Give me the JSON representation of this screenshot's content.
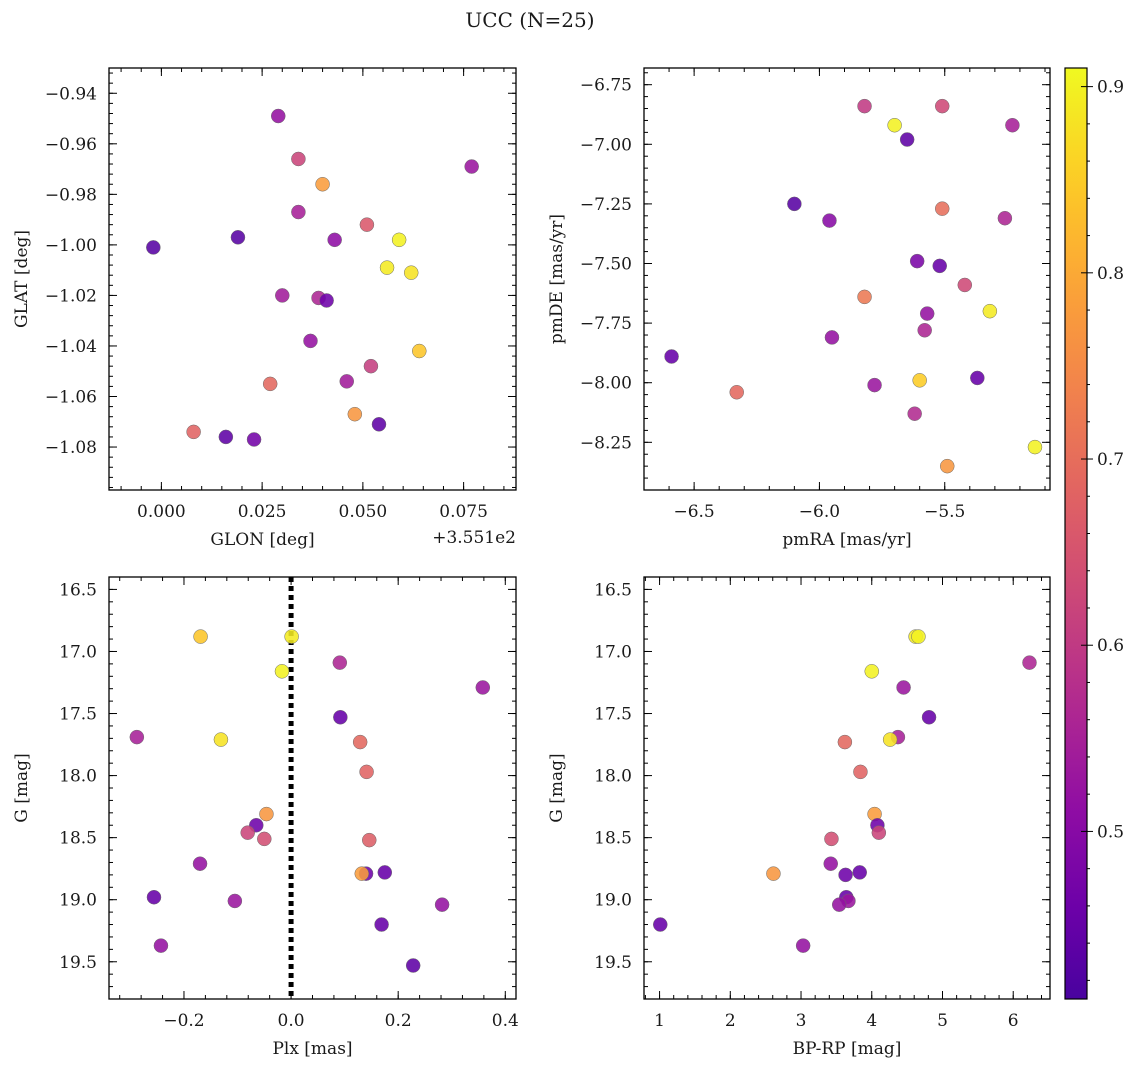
{
  "figure": {
    "title": "UCC (N=25)",
    "colorbar": {
      "colormap": "plasma",
      "range": [
        0.41,
        0.91
      ],
      "ticks": [
        "0.5",
        "0.6",
        "0.7",
        "0.8",
        "0.9"
      ],
      "tick_values": [
        0.5,
        0.6,
        0.7,
        0.8,
        0.9
      ]
    }
  },
  "chart_data": [
    {
      "type": "scatter",
      "id": "glon-glat",
      "xlabel": "GLON [deg]",
      "ylabel": "GLAT [deg]",
      "offset_label": "+3.551e2",
      "xlim": [
        -0.013,
        0.088
      ],
      "ylim": [
        -1.097,
        -0.93
      ],
      "y_inverted": false,
      "xticks": [
        0.0,
        0.025,
        0.05,
        0.075
      ],
      "xtick_labels": [
        "0.000",
        "0.025",
        "0.050",
        "0.075"
      ],
      "yticks": [
        -1.08,
        -1.06,
        -1.04,
        -1.02,
        -1.0,
        -0.98,
        -0.96,
        -0.94
      ],
      "ytick_labels": [
        "−1.08",
        "−1.06",
        "−1.04",
        "−1.02",
        "−1.00",
        "−0.98",
        "−0.96",
        "−0.94"
      ],
      "points": [
        {
          "x": 0.029,
          "y": -0.949,
          "c": 0.52
        },
        {
          "x": 0.077,
          "y": -0.969,
          "c": 0.53
        },
        {
          "x": 0.034,
          "y": -0.966,
          "c": 0.62
        },
        {
          "x": 0.04,
          "y": -0.976,
          "c": 0.78
        },
        {
          "x": 0.034,
          "y": -0.987,
          "c": 0.55
        },
        {
          "x": 0.051,
          "y": -0.992,
          "c": 0.66
        },
        {
          "x": 0.019,
          "y": -0.997,
          "c": 0.43
        },
        {
          "x": 0.043,
          "y": -0.998,
          "c": 0.51
        },
        {
          "x": 0.059,
          "y": -0.998,
          "c": 0.9
        },
        {
          "x": -0.002,
          "y": -1.001,
          "c": 0.43
        },
        {
          "x": 0.056,
          "y": -1.009,
          "c": 0.89
        },
        {
          "x": 0.062,
          "y": -1.011,
          "c": 0.88
        },
        {
          "x": 0.03,
          "y": -1.02,
          "c": 0.54
        },
        {
          "x": 0.039,
          "y": -1.021,
          "c": 0.56
        },
        {
          "x": 0.041,
          "y": -1.022,
          "c": 0.46
        },
        {
          "x": 0.037,
          "y": -1.038,
          "c": 0.52
        },
        {
          "x": 0.064,
          "y": -1.042,
          "c": 0.84
        },
        {
          "x": 0.052,
          "y": -1.048,
          "c": 0.61
        },
        {
          "x": 0.046,
          "y": -1.054,
          "c": 0.54
        },
        {
          "x": 0.027,
          "y": -1.055,
          "c": 0.69
        },
        {
          "x": 0.048,
          "y": -1.067,
          "c": 0.77
        },
        {
          "x": 0.054,
          "y": -1.071,
          "c": 0.44
        },
        {
          "x": 0.008,
          "y": -1.074,
          "c": 0.68
        },
        {
          "x": 0.016,
          "y": -1.076,
          "c": 0.44
        },
        {
          "x": 0.023,
          "y": -1.077,
          "c": 0.47
        }
      ]
    },
    {
      "type": "scatter",
      "id": "pmra-pmde",
      "xlabel": "pmRA [mas/yr]",
      "ylabel": "pmDE [mas/yr]",
      "xlim": [
        -6.7,
        -5.08
      ],
      "ylim": [
        -8.45,
        -6.68
      ],
      "y_inverted": false,
      "xticks": [
        -6.5,
        -6.0,
        -5.5
      ],
      "xtick_labels": [
        "−6.5",
        "−6.0",
        "−5.5"
      ],
      "yticks": [
        -8.25,
        -8.0,
        -7.75,
        -7.5,
        -7.25,
        -7.0,
        -6.75
      ],
      "ytick_labels": [
        "−8.25",
        "−8.00",
        "−7.75",
        "−7.50",
        "−7.25",
        "−7.00",
        "−6.75"
      ],
      "points": [
        {
          "x": -5.82,
          "y": -6.84,
          "c": 0.6
        },
        {
          "x": -5.51,
          "y": -6.84,
          "c": 0.63
        },
        {
          "x": -5.7,
          "y": -6.92,
          "c": 0.9
        },
        {
          "x": -5.23,
          "y": -6.92,
          "c": 0.55
        },
        {
          "x": -5.65,
          "y": -6.98,
          "c": 0.44
        },
        {
          "x": -6.1,
          "y": -7.25,
          "c": 0.43
        },
        {
          "x": -5.51,
          "y": -7.27,
          "c": 0.7
        },
        {
          "x": -5.26,
          "y": -7.31,
          "c": 0.56
        },
        {
          "x": -5.96,
          "y": -7.32,
          "c": 0.5
        },
        {
          "x": -5.61,
          "y": -7.49,
          "c": 0.48
        },
        {
          "x": -5.52,
          "y": -7.51,
          "c": 0.45
        },
        {
          "x": -5.42,
          "y": -7.59,
          "c": 0.63
        },
        {
          "x": -5.82,
          "y": -7.64,
          "c": 0.72
        },
        {
          "x": -5.32,
          "y": -7.7,
          "c": 0.89
        },
        {
          "x": -5.57,
          "y": -7.71,
          "c": 0.52
        },
        {
          "x": -5.58,
          "y": -7.78,
          "c": 0.56
        },
        {
          "x": -5.95,
          "y": -7.81,
          "c": 0.52
        },
        {
          "x": -6.59,
          "y": -7.89,
          "c": 0.45
        },
        {
          "x": -5.37,
          "y": -7.98,
          "c": 0.45
        },
        {
          "x": -5.6,
          "y": -7.99,
          "c": 0.85
        },
        {
          "x": -5.78,
          "y": -8.01,
          "c": 0.53
        },
        {
          "x": -6.33,
          "y": -8.04,
          "c": 0.69
        },
        {
          "x": -5.62,
          "y": -8.13,
          "c": 0.57
        },
        {
          "x": -5.14,
          "y": -8.27,
          "c": 0.9
        },
        {
          "x": -5.49,
          "y": -8.35,
          "c": 0.77
        }
      ]
    },
    {
      "type": "scatter",
      "id": "plx-g",
      "xlabel": "Plx [mas]",
      "ylabel": "G [mag]",
      "xlim": [
        -0.34,
        0.42
      ],
      "ylim": [
        16.4,
        19.8
      ],
      "y_inverted": true,
      "vline": {
        "x": 0.0,
        "style": "dotted",
        "color": "#000000"
      },
      "xticks": [
        -0.2,
        0.0,
        0.2,
        0.4
      ],
      "xtick_labels": [
        "−0.2",
        "0.0",
        "0.2",
        "0.4"
      ],
      "yticks": [
        16.5,
        17.0,
        17.5,
        18.0,
        18.5,
        19.0,
        19.5
      ],
      "ytick_labels": [
        "16.5",
        "17.0",
        "17.5",
        "18.0",
        "18.5",
        "19.0",
        "19.5"
      ],
      "points": [
        {
          "x": -0.169,
          "y": 16.88,
          "c": 0.84
        },
        {
          "x": 0.001,
          "y": 16.88,
          "c": 0.89
        },
        {
          "x": 0.091,
          "y": 17.09,
          "c": 0.56
        },
        {
          "x": -0.017,
          "y": 17.16,
          "c": 0.9
        },
        {
          "x": 0.358,
          "y": 17.29,
          "c": 0.53
        },
        {
          "x": 0.092,
          "y": 17.53,
          "c": 0.45
        },
        {
          "x": -0.288,
          "y": 17.69,
          "c": 0.55
        },
        {
          "x": -0.131,
          "y": 17.71,
          "c": 0.88
        },
        {
          "x": 0.129,
          "y": 17.73,
          "c": 0.69
        },
        {
          "x": 0.141,
          "y": 17.97,
          "c": 0.68
        },
        {
          "x": -0.046,
          "y": 18.31,
          "c": 0.77
        },
        {
          "x": -0.065,
          "y": 18.4,
          "c": 0.46
        },
        {
          "x": -0.081,
          "y": 18.46,
          "c": 0.62
        },
        {
          "x": -0.05,
          "y": 18.51,
          "c": 0.64
        },
        {
          "x": 0.146,
          "y": 18.52,
          "c": 0.67
        },
        {
          "x": -0.17,
          "y": 18.71,
          "c": 0.52
        },
        {
          "x": 0.14,
          "y": 18.79,
          "c": 0.46
        },
        {
          "x": 0.175,
          "y": 18.78,
          "c": 0.45
        },
        {
          "x": 0.132,
          "y": 18.79,
          "c": 0.78
        },
        {
          "x": -0.256,
          "y": 18.98,
          "c": 0.45
        },
        {
          "x": -0.105,
          "y": 19.01,
          "c": 0.53
        },
        {
          "x": 0.282,
          "y": 19.04,
          "c": 0.52
        },
        {
          "x": 0.169,
          "y": 19.2,
          "c": 0.45
        },
        {
          "x": -0.243,
          "y": 19.37,
          "c": 0.52
        },
        {
          "x": 0.228,
          "y": 19.53,
          "c": 0.44
        }
      ]
    },
    {
      "type": "scatter",
      "id": "bprp-g",
      "xlabel": "BP-RP [mag]",
      "ylabel": "G [mag]",
      "xlim": [
        0.78,
        6.52
      ],
      "ylim": [
        16.4,
        19.8
      ],
      "y_inverted": true,
      "xticks": [
        1,
        2,
        3,
        4,
        5,
        6
      ],
      "xtick_labels": [
        "1",
        "2",
        "3",
        "4",
        "5",
        "6"
      ],
      "yticks": [
        16.5,
        17.0,
        17.5,
        18.0,
        18.5,
        19.0,
        19.5
      ],
      "ytick_labels": [
        "16.5",
        "17.0",
        "17.5",
        "18.0",
        "18.5",
        "19.0",
        "19.5"
      ],
      "points": [
        {
          "x": 4.62,
          "y": 16.88,
          "c": 0.89
        },
        {
          "x": 4.66,
          "y": 16.88,
          "c": 0.9
        },
        {
          "x": 6.23,
          "y": 17.09,
          "c": 0.56
        },
        {
          "x": 4.0,
          "y": 17.16,
          "c": 0.9
        },
        {
          "x": 4.45,
          "y": 17.29,
          "c": 0.53
        },
        {
          "x": 4.81,
          "y": 17.53,
          "c": 0.45
        },
        {
          "x": 4.37,
          "y": 17.69,
          "c": 0.55
        },
        {
          "x": 4.26,
          "y": 17.71,
          "c": 0.88
        },
        {
          "x": 3.62,
          "y": 17.73,
          "c": 0.69
        },
        {
          "x": 3.84,
          "y": 17.97,
          "c": 0.68
        },
        {
          "x": 4.04,
          "y": 18.31,
          "c": 0.78
        },
        {
          "x": 4.08,
          "y": 18.4,
          "c": 0.46
        },
        {
          "x": 4.1,
          "y": 18.46,
          "c": 0.62
        },
        {
          "x": 3.43,
          "y": 18.51,
          "c": 0.64
        },
        {
          "x": 3.42,
          "y": 18.71,
          "c": 0.52
        },
        {
          "x": 2.61,
          "y": 18.79,
          "c": 0.77
        },
        {
          "x": 3.63,
          "y": 18.8,
          "c": 0.46
        },
        {
          "x": 3.83,
          "y": 18.78,
          "c": 0.45
        },
        {
          "x": 3.64,
          "y": 18.98,
          "c": 0.45
        },
        {
          "x": 3.67,
          "y": 19.01,
          "c": 0.53
        },
        {
          "x": 3.54,
          "y": 19.04,
          "c": 0.52
        },
        {
          "x": 1.01,
          "y": 19.2,
          "c": 0.45
        },
        {
          "x": 3.03,
          "y": 19.37,
          "c": 0.52
        }
      ]
    }
  ]
}
